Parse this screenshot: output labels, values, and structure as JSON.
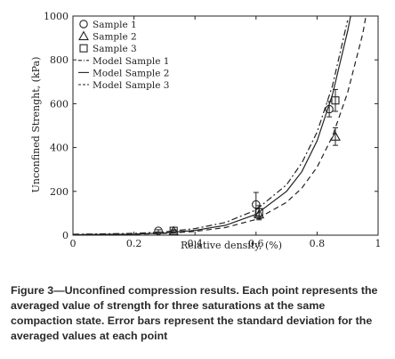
{
  "chart_data": {
    "type": "scatter",
    "xlabel": "Relative density, (%)",
    "ylabel": "Unconfined Strenght, (kPa)",
    "xlim": [
      0,
      1
    ],
    "ylim": [
      0,
      1000
    ],
    "x_ticks": [
      "0",
      "0.2",
      "0.4",
      "0.6",
      "0.8",
      "1"
    ],
    "y_ticks": [
      "0",
      "200",
      "400",
      "600",
      "800",
      "1000"
    ],
    "grid": false,
    "legend_position": "top-left",
    "series": [
      {
        "name": "Sample 1",
        "marker": "circle",
        "points": [
          {
            "x": 0.28,
            "y": 20,
            "err": 5
          },
          {
            "x": 0.6,
            "y": 140,
            "err": 55
          },
          {
            "x": 0.84,
            "y": 575,
            "err": 35
          }
        ]
      },
      {
        "name": "Sample 2",
        "marker": "triangle",
        "points": [
          {
            "x": 0.33,
            "y": 18,
            "err": 5
          },
          {
            "x": 0.61,
            "y": 95,
            "err": 25
          },
          {
            "x": 0.86,
            "y": 450,
            "err": 40
          }
        ]
      },
      {
        "name": "Sample 3",
        "marker": "square",
        "points": [
          {
            "x": 0.33,
            "y": 20,
            "err": 5
          },
          {
            "x": 0.61,
            "y": 105,
            "err": 30
          },
          {
            "x": 0.86,
            "y": 615,
            "err": 50
          }
        ]
      }
    ],
    "models": [
      {
        "name": "Model Sample 1",
        "style": "dashdot",
        "points": [
          [
            0,
            4
          ],
          [
            0.2,
            8
          ],
          [
            0.3,
            15
          ],
          [
            0.4,
            30
          ],
          [
            0.5,
            58
          ],
          [
            0.6,
            115
          ],
          [
            0.7,
            230
          ],
          [
            0.75,
            330
          ],
          [
            0.8,
            470
          ],
          [
            0.85,
            680
          ],
          [
            0.9,
            980
          ]
        ]
      },
      {
        "name": "Model Sample 2",
        "style": "solid",
        "points": [
          [
            0,
            2
          ],
          [
            0.2,
            5
          ],
          [
            0.3,
            10
          ],
          [
            0.4,
            22
          ],
          [
            0.5,
            45
          ],
          [
            0.6,
            95
          ],
          [
            0.7,
            200
          ],
          [
            0.75,
            290
          ],
          [
            0.8,
            430
          ],
          [
            0.85,
            640
          ],
          [
            0.9,
            930
          ],
          [
            0.91,
            1000
          ]
        ]
      },
      {
        "name": "Model Sample 3",
        "style": "dashed",
        "points": [
          [
            0,
            2
          ],
          [
            0.2,
            4
          ],
          [
            0.3,
            8
          ],
          [
            0.4,
            17
          ],
          [
            0.5,
            35
          ],
          [
            0.6,
            72
          ],
          [
            0.7,
            150
          ],
          [
            0.75,
            215
          ],
          [
            0.8,
            310
          ],
          [
            0.85,
            450
          ],
          [
            0.9,
            650
          ],
          [
            0.95,
            920
          ],
          [
            0.96,
            1000
          ]
        ]
      }
    ]
  },
  "caption": {
    "label": "Figure 3",
    "text": "—Unconfined compression results. Each point represents the averaged value of strength for three saturations at the same compaction state. Error bars represent the standard deviation for the averaged values at each point"
  }
}
